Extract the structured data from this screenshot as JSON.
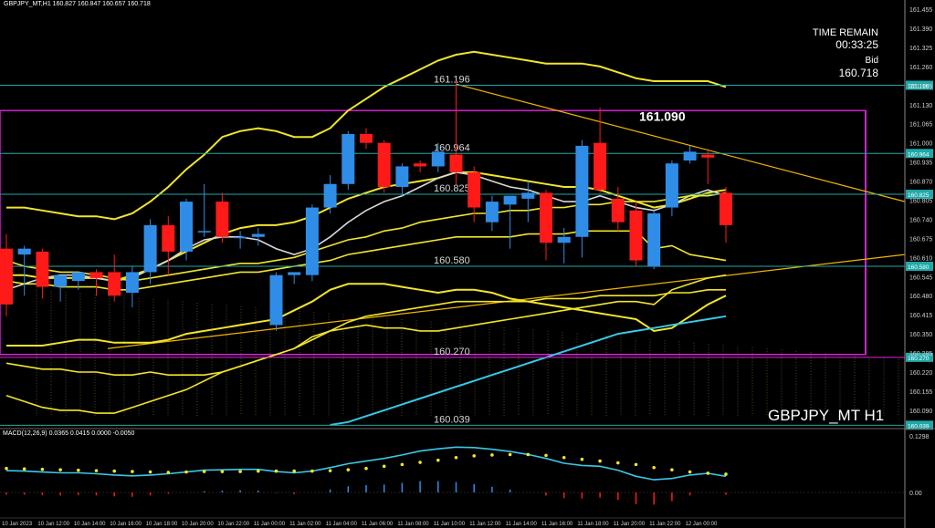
{
  "header": {
    "info": "GBPJPY_MT,H1  160.827 160.847 160.657 160.718"
  },
  "panel": {
    "time_remain_label": "TIME REMAIN",
    "time_remain": "00:33:25",
    "bid_label": "Bid",
    "bid_value": "160.718",
    "symbol_label": "GBPJPY_MT H1",
    "big_level": "161.090"
  },
  "macd_header": "MACD(12,26,9) 0.0365 0.0415 0.0000 -0.0050",
  "colors": {
    "bull": "#2f8de8",
    "bear": "#ff1a1a",
    "magenta": "#e020e0",
    "cyan_line": "#38c8e8",
    "yellow": "#f2e52a",
    "orange_trend": "#f0b400",
    "grid_dot": "#7a7a40"
  },
  "chart_data": {
    "type": "candlestick",
    "y_axis_ticks": [
      "161.455",
      "161.390",
      "161.325",
      "161.260",
      "161.195",
      "161.130",
      "161.065",
      "161.000",
      "160.935",
      "160.870",
      "160.805",
      "160.740",
      "160.675",
      "160.610",
      "160.545",
      "160.480",
      "160.415",
      "160.350",
      "160.285",
      "160.220",
      "160.155",
      "160.090"
    ],
    "ylim": [
      160.04,
      161.48
    ],
    "macd_axis": [
      "0.1298",
      "0.00"
    ],
    "x_labels": [
      "10 Jan 2023",
      "10 Jan 12:00",
      "10 Jan 14:00",
      "10 Jan 16:00",
      "10 Jan 18:00",
      "10 Jan 20:00",
      "10 Jan 22:00",
      "11 Jan 00:00",
      "11 Jan 02:00",
      "11 Jan 04:00",
      "11 Jan 06:00",
      "11 Jan 08:00",
      "11 Jan 10:00",
      "11 Jan 12:00",
      "11 Jan 14:00",
      "11 Jan 16:00",
      "11 Jan 18:00",
      "11 Jan 20:00",
      "11 Jan 22:00",
      "12 Jan 00:00"
    ],
    "hlines": [
      {
        "price": 161.196,
        "label": "161.196",
        "tag": "161.196"
      },
      {
        "price": 160.964,
        "label": "160.964",
        "tag": "160.964"
      },
      {
        "price": 160.825,
        "label": "160.825",
        "tag": "160.825"
      },
      {
        "price": 160.58,
        "label": "160.580",
        "tag": "160.580"
      },
      {
        "price": 160.27,
        "label": "160.270",
        "tag": "160.270"
      },
      {
        "price": 160.039,
        "label": "160.039",
        "tag": "160.039"
      }
    ],
    "box": {
      "top": 161.11,
      "bottom": 160.28
    },
    "candles": [
      {
        "o": 160.64,
        "h": 160.69,
        "l": 160.41,
        "c": 160.45
      },
      {
        "o": 160.62,
        "h": 160.65,
        "l": 160.48,
        "c": 160.64
      },
      {
        "o": 160.63,
        "h": 160.64,
        "l": 160.47,
        "c": 160.51
      },
      {
        "o": 160.51,
        "h": 160.54,
        "l": 160.46,
        "c": 160.55
      },
      {
        "o": 160.53,
        "h": 160.56,
        "l": 160.5,
        "c": 160.56
      },
      {
        "o": 160.56,
        "h": 160.57,
        "l": 160.48,
        "c": 160.54
      },
      {
        "o": 160.56,
        "h": 160.62,
        "l": 160.46,
        "c": 160.48
      },
      {
        "o": 160.49,
        "h": 160.58,
        "l": 160.44,
        "c": 160.56
      },
      {
        "o": 160.56,
        "h": 160.74,
        "l": 160.52,
        "c": 160.72
      },
      {
        "o": 160.72,
        "h": 160.75,
        "l": 160.55,
        "c": 160.63
      },
      {
        "o": 160.63,
        "h": 160.81,
        "l": 160.6,
        "c": 160.8
      },
      {
        "o": 160.7,
        "h": 160.86,
        "l": 160.68,
        "c": 160.7
      },
      {
        "o": 160.8,
        "h": 160.83,
        "l": 160.66,
        "c": 160.68
      },
      {
        "o": 160.68,
        "h": 160.7,
        "l": 160.64,
        "c": 160.68
      },
      {
        "o": 160.68,
        "h": 160.71,
        "l": 160.65,
        "c": 160.69
      },
      {
        "o": 160.38,
        "h": 160.56,
        "l": 160.36,
        "c": 160.55
      },
      {
        "o": 160.55,
        "h": 160.56,
        "l": 160.52,
        "c": 160.56
      },
      {
        "o": 160.55,
        "h": 160.79,
        "l": 160.53,
        "c": 160.78
      },
      {
        "o": 160.78,
        "h": 160.89,
        "l": 160.76,
        "c": 160.86
      },
      {
        "o": 160.86,
        "h": 161.04,
        "l": 160.84,
        "c": 161.03
      },
      {
        "o": 161.03,
        "h": 161.05,
        "l": 160.98,
        "c": 161.0
      },
      {
        "o": 161.0,
        "h": 161.01,
        "l": 160.83,
        "c": 160.85
      },
      {
        "o": 160.85,
        "h": 160.93,
        "l": 160.82,
        "c": 160.92
      },
      {
        "o": 160.93,
        "h": 160.94,
        "l": 160.9,
        "c": 160.92
      },
      {
        "o": 160.92,
        "h": 161.0,
        "l": 160.9,
        "c": 160.97
      },
      {
        "o": 160.96,
        "h": 161.21,
        "l": 160.86,
        "c": 160.9
      },
      {
        "o": 160.9,
        "h": 160.92,
        "l": 160.73,
        "c": 160.78
      },
      {
        "o": 160.73,
        "h": 160.82,
        "l": 160.7,
        "c": 160.8
      },
      {
        "o": 160.79,
        "h": 160.82,
        "l": 160.64,
        "c": 160.82
      },
      {
        "o": 160.81,
        "h": 160.87,
        "l": 160.73,
        "c": 160.83
      },
      {
        "o": 160.83,
        "h": 160.84,
        "l": 160.6,
        "c": 160.66
      },
      {
        "o": 160.66,
        "h": 160.71,
        "l": 160.59,
        "c": 160.68
      },
      {
        "o": 160.68,
        "h": 161.01,
        "l": 160.61,
        "c": 160.99
      },
      {
        "o": 161.0,
        "h": 161.12,
        "l": 160.83,
        "c": 160.84
      },
      {
        "o": 160.81,
        "h": 160.85,
        "l": 160.7,
        "c": 160.73
      },
      {
        "o": 160.77,
        "h": 160.8,
        "l": 160.58,
        "c": 160.6
      },
      {
        "o": 160.58,
        "h": 160.77,
        "l": 160.57,
        "c": 160.76
      },
      {
        "o": 160.78,
        "h": 160.94,
        "l": 160.75,
        "c": 160.93
      },
      {
        "o": 160.94,
        "h": 160.99,
        "l": 160.93,
        "c": 160.97
      },
      {
        "o": 160.96,
        "h": 160.98,
        "l": 160.86,
        "c": 160.95
      },
      {
        "o": 160.83,
        "h": 160.85,
        "l": 160.66,
        "c": 160.72
      }
    ],
    "series": [
      {
        "name": "bb_upper",
        "color": "#f2e52a",
        "values": [
          160.78,
          160.78,
          160.77,
          160.76,
          160.75,
          160.75,
          160.74,
          160.76,
          160.8,
          160.85,
          160.91,
          160.96,
          161.02,
          161.04,
          161.05,
          161.04,
          161.02,
          161.02,
          161.05,
          161.11,
          161.15,
          161.19,
          161.22,
          161.25,
          161.28,
          161.3,
          161.31,
          161.3,
          161.29,
          161.28,
          161.27,
          161.27,
          161.27,
          161.26,
          161.24,
          161.22,
          161.21,
          161.21,
          161.21,
          161.21,
          161.19
        ]
      },
      {
        "name": "bb_mid",
        "color": "#f2e52a",
        "values": [
          160.55,
          160.55,
          160.54,
          160.54,
          160.54,
          160.54,
          160.53,
          160.55,
          160.57,
          160.6,
          160.63,
          160.66,
          160.69,
          160.71,
          160.72,
          160.72,
          160.73,
          160.75,
          160.78,
          160.81,
          160.83,
          160.85,
          160.86,
          160.87,
          160.88,
          160.9,
          160.9,
          160.89,
          160.88,
          160.87,
          160.86,
          160.85,
          160.85,
          160.84,
          160.82,
          160.8,
          160.78,
          160.79,
          160.81,
          160.83,
          160.84
        ]
      },
      {
        "name": "bb_lower",
        "color": "#f2e52a",
        "values": [
          160.31,
          160.31,
          160.31,
          160.32,
          160.33,
          160.33,
          160.32,
          160.32,
          160.32,
          160.33,
          160.35,
          160.36,
          160.37,
          160.38,
          160.39,
          160.4,
          160.43,
          160.46,
          160.5,
          160.52,
          160.52,
          160.52,
          160.51,
          160.5,
          160.49,
          160.5,
          160.5,
          160.49,
          160.47,
          160.46,
          160.45,
          160.44,
          160.43,
          160.42,
          160.41,
          160.4,
          160.36,
          160.37,
          160.41,
          160.45,
          160.48
        ]
      },
      {
        "name": "ma_white",
        "color": "#d8d8d8",
        "values": [
          160.5,
          160.52,
          160.54,
          160.55,
          160.55,
          160.54,
          160.53,
          160.54,
          160.57,
          160.6,
          160.64,
          160.67,
          160.68,
          160.68,
          160.67,
          160.64,
          160.62,
          160.64,
          160.68,
          160.73,
          160.77,
          160.8,
          160.82,
          160.85,
          160.88,
          160.9,
          160.89,
          160.87,
          160.85,
          160.84,
          160.82,
          160.8,
          160.8,
          160.82,
          160.8,
          160.78,
          160.77,
          160.79,
          160.82,
          160.84,
          160.82
        ]
      },
      {
        "name": "ma_cyan",
        "color": "#38c8e8",
        "values": [
          null,
          null,
          null,
          null,
          null,
          null,
          null,
          null,
          null,
          null,
          null,
          null,
          null,
          null,
          null,
          null,
          null,
          null,
          160.04,
          160.05,
          160.07,
          160.09,
          160.11,
          160.13,
          160.15,
          160.17,
          160.19,
          160.21,
          160.23,
          160.25,
          160.27,
          160.29,
          160.31,
          160.33,
          160.35,
          160.36,
          160.37,
          160.38,
          160.39,
          160.4,
          160.41
        ]
      },
      {
        "name": "line_y1",
        "color": "#f2e52a",
        "values": [
          160.6,
          160.58,
          160.57,
          160.56,
          160.56,
          160.55,
          160.54,
          160.53,
          160.54,
          160.55,
          160.56,
          160.57,
          160.58,
          160.59,
          160.59,
          160.6,
          160.61,
          160.63,
          160.65,
          160.67,
          160.68,
          160.7,
          160.71,
          160.73,
          160.74,
          160.75,
          160.76,
          160.76,
          160.77,
          160.77,
          160.78,
          160.78,
          160.79,
          160.79,
          160.8,
          160.8,
          160.8,
          160.81,
          160.82,
          160.82,
          160.83
        ]
      },
      {
        "name": "line_y2",
        "color": "#f2e52a",
        "values": [
          160.53,
          160.52,
          160.52,
          160.51,
          160.51,
          160.51,
          160.5,
          160.5,
          160.51,
          160.52,
          160.53,
          160.54,
          160.55,
          160.56,
          160.56,
          160.57,
          160.58,
          160.59,
          160.6,
          160.62,
          160.63,
          160.64,
          160.65,
          160.66,
          160.67,
          160.68,
          160.68,
          160.68,
          160.68,
          160.69,
          160.69,
          160.69,
          160.7,
          160.7,
          160.7,
          160.7,
          160.64,
          160.65,
          160.62,
          160.61,
          160.6
        ]
      },
      {
        "name": "line_y3",
        "color": "#f2e52a",
        "values": [
          160.25,
          160.24,
          160.23,
          160.23,
          160.22,
          160.22,
          160.21,
          160.21,
          160.22,
          160.21,
          160.21,
          160.21,
          160.22,
          160.24,
          160.26,
          160.28,
          160.3,
          160.33,
          160.36,
          160.39,
          160.41,
          160.42,
          160.43,
          160.44,
          160.45,
          160.46,
          160.46,
          160.46,
          160.46,
          160.46,
          160.47,
          160.47,
          160.47,
          160.48,
          160.48,
          160.48,
          160.48,
          160.49,
          160.49,
          160.5,
          160.5
        ]
      },
      {
        "name": "line_y4",
        "color": "#f2e52a",
        "values": [
          160.14,
          160.12,
          160.1,
          160.09,
          160.09,
          160.08,
          160.08,
          160.1,
          160.12,
          160.14,
          160.16,
          160.19,
          160.22,
          160.24,
          160.26,
          160.28,
          160.3,
          160.34,
          160.36,
          160.37,
          160.38,
          160.37,
          160.37,
          160.36,
          160.36,
          160.37,
          160.38,
          160.39,
          160.4,
          160.41,
          160.42,
          160.43,
          160.44,
          160.45,
          160.46,
          160.46,
          160.45,
          160.5,
          160.52,
          160.54,
          160.55
        ]
      }
    ],
    "macd": [
      0.05,
      0.049,
      0.047,
      0.045,
      0.045,
      0.043,
      0.04,
      0.038,
      0.04,
      0.043,
      0.047,
      0.051,
      0.052,
      0.053,
      0.053,
      0.048,
      0.045,
      0.049,
      0.057,
      0.066,
      0.072,
      0.078,
      0.086,
      0.095,
      0.1,
      0.104,
      0.103,
      0.099,
      0.094,
      0.087,
      0.078,
      0.067,
      0.062,
      0.06,
      0.051,
      0.037,
      0.029,
      0.032,
      0.04,
      0.044,
      0.037
    ],
    "signal": [
      0.055,
      0.054,
      0.053,
      0.052,
      0.051,
      0.05,
      0.049,
      0.048,
      0.047,
      0.046,
      0.047,
      0.048,
      0.048,
      0.048,
      0.049,
      0.049,
      0.049,
      0.049,
      0.05,
      0.052,
      0.055,
      0.06,
      0.064,
      0.069,
      0.074,
      0.08,
      0.084,
      0.086,
      0.087,
      0.087,
      0.085,
      0.08,
      0.076,
      0.072,
      0.068,
      0.064,
      0.057,
      0.052,
      0.047,
      0.044,
      0.042
    ],
    "hist": [
      -0.005,
      -0.005,
      -0.006,
      -0.007,
      -0.006,
      -0.007,
      -0.009,
      -0.01,
      -0.007,
      -0.003,
      0.0,
      0.003,
      0.004,
      0.005,
      0.004,
      -0.001,
      -0.004,
      0.0,
      0.007,
      0.014,
      0.017,
      0.018,
      0.022,
      0.026,
      0.026,
      0.024,
      0.019,
      0.013,
      0.007,
      0.0,
      -0.007,
      -0.013,
      -0.014,
      -0.012,
      -0.017,
      -0.027,
      -0.028,
      -0.02,
      -0.007,
      0.0,
      -0.005
    ]
  }
}
